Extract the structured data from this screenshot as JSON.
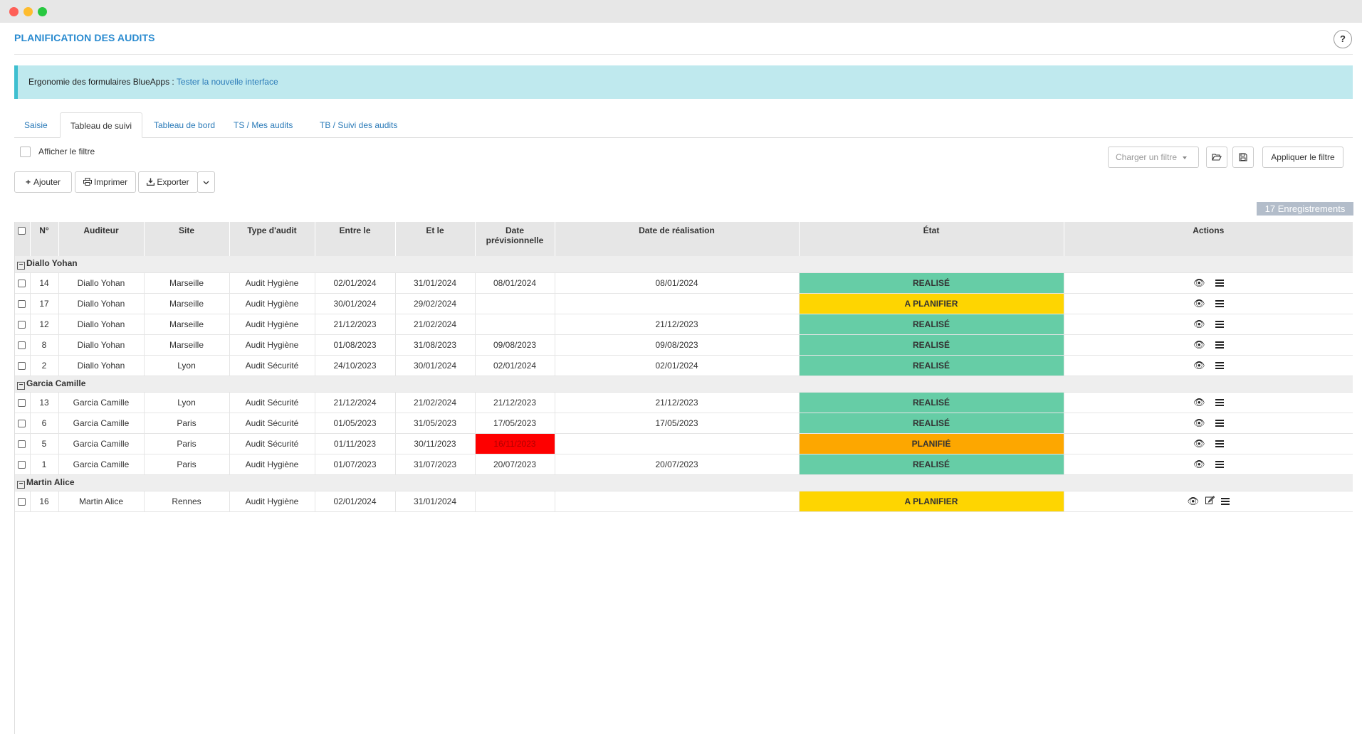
{
  "header": {
    "title": "PLANIFICATION DES AUDITS",
    "help_label": "?"
  },
  "banner": {
    "text": "Ergonomie des formulaires BlueApps : ",
    "link": "Tester la nouvelle interface"
  },
  "tabs": [
    {
      "label": "Saisie"
    },
    {
      "label": "Tableau de suivi"
    },
    {
      "label": "Tableau de bord"
    },
    {
      "label": "TS / Mes audits"
    },
    {
      "label": "TB / Suivi des audits"
    }
  ],
  "filter": {
    "show_label": "Afficher le filtre",
    "load_placeholder": "Charger un filtre",
    "apply_label": "Appliquer le filtre"
  },
  "toolbar": {
    "add_label": "Ajouter",
    "print_label": "Imprimer",
    "export_label": "Exporter"
  },
  "records_count": "17 Enregistrements",
  "columns": [
    "N°",
    "Auditeur",
    "Site",
    "Type d'audit",
    "Entre le",
    "Et le",
    "Date prévisionnelle",
    "Date de réalisation",
    "État",
    "Actions"
  ],
  "groups": [
    {
      "name": "Diallo Yohan",
      "rows": [
        {
          "num": "14",
          "auditeur": "Diallo Yohan",
          "site": "Marseille",
          "type": "Audit Hygiène",
          "entre": "02/01/2024",
          "et": "31/01/2024",
          "prev": "08/01/2024",
          "real": "08/01/2024",
          "etat": "REALISÉ"
        },
        {
          "num": "17",
          "auditeur": "Diallo Yohan",
          "site": "Marseille",
          "type": "Audit Hygiène",
          "entre": "30/01/2024",
          "et": "29/02/2024",
          "prev": "",
          "real": "",
          "etat": "A PLANIFIER"
        },
        {
          "num": "12",
          "auditeur": "Diallo Yohan",
          "site": "Marseille",
          "type": "Audit Hygiène",
          "entre": "21/12/2023",
          "et": "21/02/2024",
          "prev": "",
          "real": "21/12/2023",
          "etat": "REALISÉ"
        },
        {
          "num": "8",
          "auditeur": "Diallo Yohan",
          "site": "Marseille",
          "type": "Audit Hygiène",
          "entre": "01/08/2023",
          "et": "31/08/2023",
          "prev": "09/08/2023",
          "real": "09/08/2023",
          "etat": "REALISÉ"
        },
        {
          "num": "2",
          "auditeur": "Diallo Yohan",
          "site": "Lyon",
          "type": "Audit Sécurité",
          "entre": "24/10/2023",
          "et": "30/01/2024",
          "prev": "02/01/2024",
          "real": "02/01/2024",
          "etat": "REALISÉ"
        }
      ]
    },
    {
      "name": "Garcia Camille",
      "rows": [
        {
          "num": "13",
          "auditeur": "Garcia Camille",
          "site": "Lyon",
          "type": "Audit Sécurité",
          "entre": "21/12/2024",
          "et": "21/02/2024",
          "prev": "21/12/2023",
          "real": "21/12/2023",
          "etat": "REALISÉ"
        },
        {
          "num": "6",
          "auditeur": "Garcia Camille",
          "site": "Paris",
          "type": "Audit Sécurité",
          "entre": "01/05/2023",
          "et": "31/05/2023",
          "prev": "17/05/2023",
          "real": "17/05/2023",
          "etat": "REALISÉ"
        },
        {
          "num": "5",
          "auditeur": "Garcia Camille",
          "site": "Paris",
          "type": "Audit Sécurité",
          "entre": "01/11/2023",
          "et": "30/11/2023",
          "prev": "16/11/2023",
          "real": "",
          "etat": "PLANIFIÉ"
        },
        {
          "num": "1",
          "auditeur": "Garcia Camille",
          "site": "Paris",
          "type": "Audit Hygiène",
          "entre": "01/07/2023",
          "et": "31/07/2023",
          "prev": "20/07/2023",
          "real": "20/07/2023",
          "etat": "REALISÉ"
        }
      ]
    },
    {
      "name": "Martin Alice",
      "rows": [
        {
          "num": "16",
          "auditeur": "Martin Alice",
          "site": "Rennes",
          "type": "Audit Hygiène",
          "entre": "02/01/2024",
          "et": "31/01/2024",
          "prev": "",
          "real": "",
          "etat": "A PLANIFIER"
        }
      ]
    }
  ],
  "colors": {
    "realise": "#66cda6",
    "a_planifier": "#fed501",
    "planifie": "#fda700",
    "late": "#fe0000",
    "accent": "#2a8bd0"
  }
}
